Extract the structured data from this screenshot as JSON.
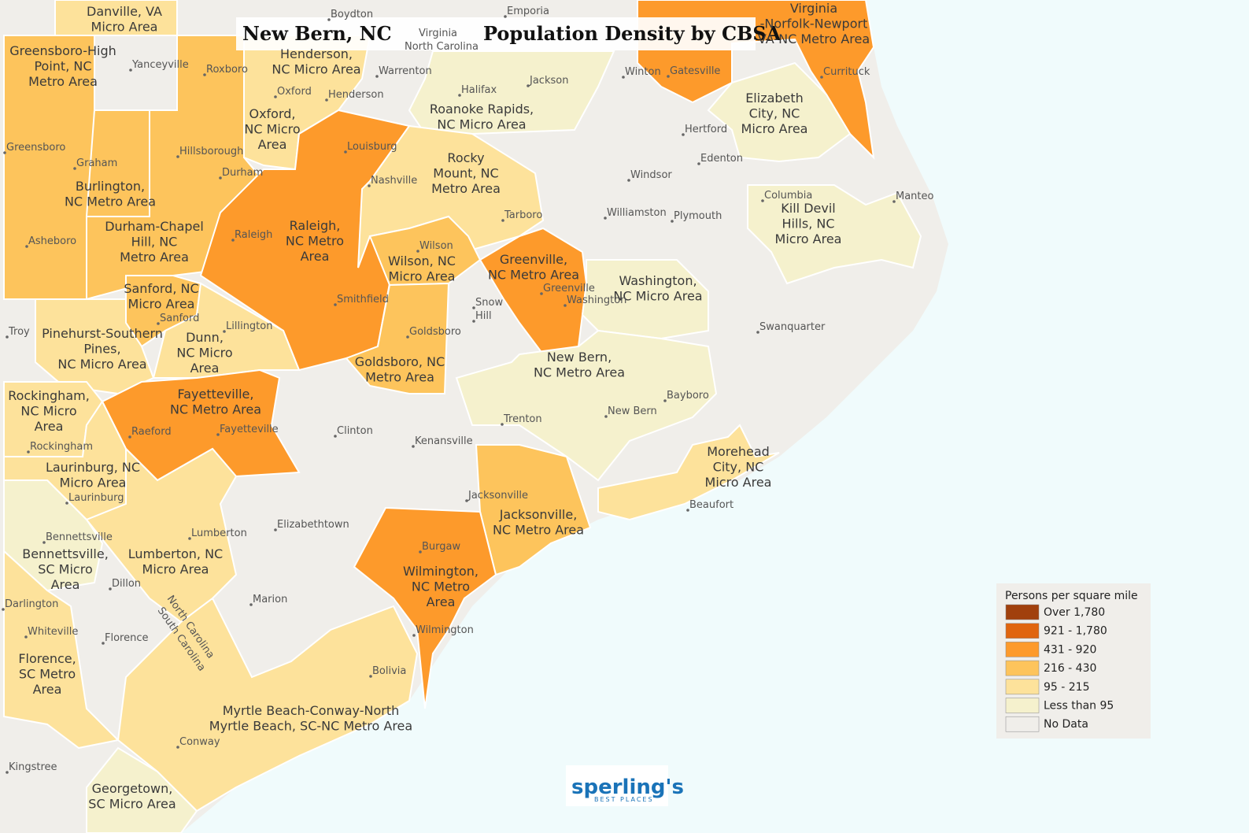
{
  "title": {
    "place": "New Bern, NC",
    "subject": "Population Density by CBSA"
  },
  "colors": {
    "ocean": "#f0fbfc",
    "no_data": "#f0eeea",
    "lt95": "#f5f1cd",
    "c95_215": "#fde29b",
    "c216_430": "#fdc45c",
    "c431_920": "#fd9a2b",
    "c921_1780": "#e0650f",
    "over1780": "#a1400c",
    "border": "#ffffff"
  },
  "legend": {
    "title": "Persons per square mile",
    "items": [
      {
        "label": "Over 1,780",
        "color": "#a1400c"
      },
      {
        "label": "921 - 1,780",
        "color": "#e0650f"
      },
      {
        "label": "431 - 920",
        "color": "#fd9a2b"
      },
      {
        "label": "216 - 430",
        "color": "#fdc45c"
      },
      {
        "label": "95 - 215",
        "color": "#fde29b"
      },
      {
        "label": "Less than 95",
        "color": "#f5f1cd"
      },
      {
        "label": "No Data",
        "color": "#f0eeea"
      }
    ]
  },
  "areas": [
    {
      "name": "danville",
      "lines": [
        "Danville, VA",
        "Micro Area"
      ]
    },
    {
      "name": "greensboro",
      "lines": [
        "Greensboro-High",
        "Point, NC",
        "Metro Area"
      ]
    },
    {
      "name": "henderson",
      "lines": [
        "Henderson,",
        "NC Micro Area"
      ]
    },
    {
      "name": "oxford",
      "lines": [
        "Oxford,",
        "NC Micro",
        "Area"
      ]
    },
    {
      "name": "virginia-beach",
      "lines": [
        "Virginia",
        "-Norfolk-Newport",
        "VA-NC Metro Area"
      ]
    },
    {
      "name": "roanoke-rapids",
      "lines": [
        "Roanoke Rapids,",
        "NC Micro Area"
      ]
    },
    {
      "name": "elizabeth-city",
      "lines": [
        "Elizabeth",
        "City, NC",
        "Micro Area"
      ]
    },
    {
      "name": "rocky-mount",
      "lines": [
        "Rocky",
        "Mount, NC",
        "Metro Area"
      ]
    },
    {
      "name": "burlington",
      "lines": [
        "Burlington,",
        "NC Metro Area"
      ]
    },
    {
      "name": "durham",
      "lines": [
        "Durham-Chapel",
        "Hill, NC",
        "Metro Area"
      ]
    },
    {
      "name": "raleigh",
      "lines": [
        "Raleigh,",
        "NC Metro",
        "Area"
      ]
    },
    {
      "name": "kill-devil",
      "lines": [
        "Kill Devil",
        "Hills, NC",
        "Micro Area"
      ]
    },
    {
      "name": "wilson",
      "lines": [
        "Wilson, NC",
        "Micro Area"
      ]
    },
    {
      "name": "greenville",
      "lines": [
        "Greenville,",
        "NC Metro Area"
      ]
    },
    {
      "name": "washington",
      "lines": [
        "Washington,",
        "NC Micro Area"
      ]
    },
    {
      "name": "sanford",
      "lines": [
        "Sanford, NC",
        "Micro Area"
      ]
    },
    {
      "name": "pinehurst",
      "lines": [
        "Pinehurst-Southern",
        "Pines,",
        "NC Micro Area"
      ]
    },
    {
      "name": "dunn",
      "lines": [
        "Dunn,",
        "NC Micro",
        "Area"
      ]
    },
    {
      "name": "goldsboro",
      "lines": [
        "Goldsboro, NC",
        "Metro Area"
      ]
    },
    {
      "name": "new-bern",
      "lines": [
        "New Bern,",
        "NC Metro Area"
      ]
    },
    {
      "name": "rockingham",
      "lines": [
        "Rockingham,",
        "NC Micro",
        "Area"
      ]
    },
    {
      "name": "fayetteville",
      "lines": [
        "Fayetteville,",
        "NC Metro Area"
      ]
    },
    {
      "name": "morehead",
      "lines": [
        "Morehead",
        "City, NC",
        "Micro Area"
      ]
    },
    {
      "name": "laurinburg",
      "lines": [
        "Laurinburg, NC",
        "Micro Area"
      ]
    },
    {
      "name": "jacksonville",
      "lines": [
        "Jacksonville,",
        "NC Metro Area"
      ]
    },
    {
      "name": "bennettsville",
      "lines": [
        "Bennettsville,",
        "SC Micro",
        "Area"
      ]
    },
    {
      "name": "lumberton",
      "lines": [
        "Lumberton, NC",
        "Micro Area"
      ]
    },
    {
      "name": "wilmington",
      "lines": [
        "Wilmington,",
        "NC Metro",
        "Area"
      ]
    },
    {
      "name": "florence",
      "lines": [
        "Florence,",
        "SC Metro",
        "Area"
      ]
    },
    {
      "name": "myrtle-beach",
      "lines": [
        "Myrtle Beach-Conway-North",
        "Myrtle Beach, SC-NC Metro Area"
      ]
    },
    {
      "name": "georgetown",
      "lines": [
        "Georgetown,",
        "SC Micro Area"
      ]
    }
  ],
  "cities": [
    "Boydton",
    "Emporia",
    "Yanceyville",
    "Roxboro",
    "Warrenton",
    "Oxford",
    "Henderson",
    "Halifax",
    "Jackson",
    "Winton",
    "Gatesville",
    "Currituck",
    "Greensboro",
    "Hillsborough",
    "Graham",
    "Durham",
    "Louisburg",
    "Nashville",
    "Hertford",
    "Edenton",
    "Windsor",
    "Manteo",
    "Columbia",
    "Tarboro",
    "Williamston",
    "Plymouth",
    "Asheboro",
    "Raleigh",
    "Wilson",
    "Greenville",
    "Washington",
    "Smithfield",
    "Snow",
    "Hill",
    "Sanford",
    "Troy",
    "Lillington",
    "Goldsboro",
    "Swanquarter",
    "Bayboro",
    "New Bern",
    "Trenton",
    "Raeford",
    "Fayetteville",
    "Clinton",
    "Kenansville",
    "Rockingham",
    "Laurinburg",
    "Jacksonville",
    "Beaufort",
    "Bennettsville",
    "Lumberton",
    "Elizabethtown",
    "Burgaw",
    "Dillon",
    "Darlington",
    "Whiteville",
    "Florence",
    "Marion",
    "Wilmington",
    "Bolivia",
    "Conway",
    "Kingstree"
  ],
  "state_lines": {
    "va_nc_top": "Virginia",
    "va_nc_bottom": "North Carolina",
    "nc_sc_top": "North Carolina",
    "nc_sc_bottom": "South Carolina"
  },
  "logo": {
    "main": "sperling's",
    "sub": "BEST PLACES"
  }
}
